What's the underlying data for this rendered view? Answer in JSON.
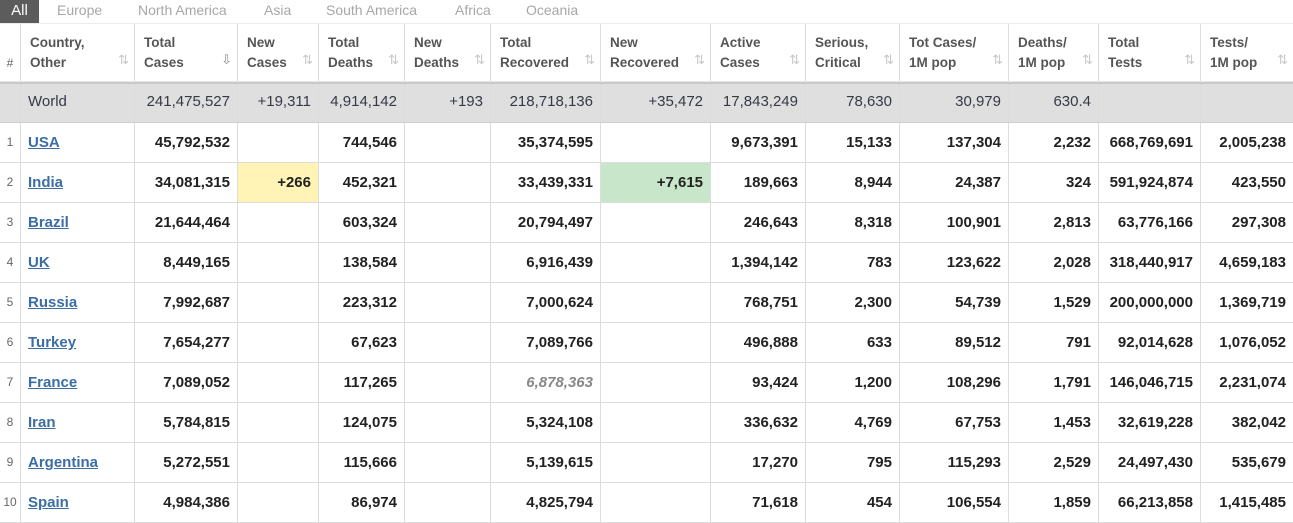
{
  "tabs": [
    "All",
    "Europe",
    "North America",
    "Asia",
    "South America",
    "Africa",
    "Oceania"
  ],
  "headers": {
    "idx": "#",
    "country": [
      "Country,",
      "Other"
    ],
    "tc": [
      "Total",
      "Cases"
    ],
    "nc": [
      "New",
      "Cases"
    ],
    "td": [
      "Total",
      "Deaths"
    ],
    "nd": [
      "New",
      "Deaths"
    ],
    "tr": [
      "Total",
      "Recovered"
    ],
    "nr": [
      "New",
      "Recovered"
    ],
    "ac": [
      "Active",
      "Cases"
    ],
    "sc": [
      "Serious,",
      "Critical"
    ],
    "tcm": [
      "Tot Cases/",
      "1M pop"
    ],
    "dm": [
      "Deaths/",
      "1M pop"
    ],
    "tt": [
      "Total",
      "Tests"
    ],
    "tm": [
      "Tests/",
      "1M pop"
    ]
  },
  "sort_icon": "⇅",
  "sort_icon_active": "⇩",
  "world": {
    "country": "World",
    "tc": "241,475,527",
    "nc": "+19,311",
    "td": "4,914,142",
    "nd": "+193",
    "tr": "218,718,136",
    "nr": "+35,472",
    "ac": "17,843,249",
    "sc": "78,630",
    "tcm": "30,979",
    "dm": "630.4",
    "tt": "",
    "tm": ""
  },
  "rows": [
    {
      "idx": "1",
      "country": "USA",
      "tc": "45,792,532",
      "nc": "",
      "td": "744,546",
      "nd": "",
      "tr": "35,374,595",
      "nr": "",
      "ac": "9,673,391",
      "sc": "15,133",
      "tcm": "137,304",
      "dm": "2,232",
      "tt": "668,769,691",
      "tm": "2,005,238"
    },
    {
      "idx": "2",
      "country": "India",
      "tc": "34,081,315",
      "nc": "+266",
      "td": "452,321",
      "nd": "",
      "tr": "33,439,331",
      "nr": "+7,615",
      "ac": "189,663",
      "sc": "8,944",
      "tcm": "24,387",
      "dm": "324",
      "tt": "591,924,874",
      "tm": "423,550"
    },
    {
      "idx": "3",
      "country": "Brazil",
      "tc": "21,644,464",
      "nc": "",
      "td": "603,324",
      "nd": "",
      "tr": "20,794,497",
      "nr": "",
      "ac": "246,643",
      "sc": "8,318",
      "tcm": "100,901",
      "dm": "2,813",
      "tt": "63,776,166",
      "tm": "297,308"
    },
    {
      "idx": "4",
      "country": "UK",
      "tc": "8,449,165",
      "nc": "",
      "td": "138,584",
      "nd": "",
      "tr": "6,916,439",
      "nr": "",
      "ac": "1,394,142",
      "sc": "783",
      "tcm": "123,622",
      "dm": "2,028",
      "tt": "318,440,917",
      "tm": "4,659,183"
    },
    {
      "idx": "5",
      "country": "Russia",
      "tc": "7,992,687",
      "nc": "",
      "td": "223,312",
      "nd": "",
      "tr": "7,000,624",
      "nr": "",
      "ac": "768,751",
      "sc": "2,300",
      "tcm": "54,739",
      "dm": "1,529",
      "tt": "200,000,000",
      "tm": "1,369,719"
    },
    {
      "idx": "6",
      "country": "Turkey",
      "tc": "7,654,277",
      "nc": "",
      "td": "67,623",
      "nd": "",
      "tr": "7,089,766",
      "nr": "",
      "ac": "496,888",
      "sc": "633",
      "tcm": "89,512",
      "dm": "791",
      "tt": "92,014,628",
      "tm": "1,076,052"
    },
    {
      "idx": "7",
      "country": "France",
      "tc": "7,089,052",
      "nc": "",
      "td": "117,265",
      "nd": "",
      "tr": "6,878,363",
      "nr": "",
      "ac": "93,424",
      "sc": "1,200",
      "tcm": "108,296",
      "dm": "1,791",
      "tt": "146,046,715",
      "tm": "2,231,074",
      "tr_unofficial": true
    },
    {
      "idx": "8",
      "country": "Iran",
      "tc": "5,784,815",
      "nc": "",
      "td": "124,075",
      "nd": "",
      "tr": "5,324,108",
      "nr": "",
      "ac": "336,632",
      "sc": "4,769",
      "tcm": "67,753",
      "dm": "1,453",
      "tt": "32,619,228",
      "tm": "382,042"
    },
    {
      "idx": "9",
      "country": "Argentina",
      "tc": "5,272,551",
      "nc": "",
      "td": "115,666",
      "nd": "",
      "tr": "5,139,615",
      "nr": "",
      "ac": "17,270",
      "sc": "795",
      "tcm": "115,293",
      "dm": "2,529",
      "tt": "24,497,430",
      "tm": "535,679"
    },
    {
      "idx": "10",
      "country": "Spain",
      "tc": "4,984,386",
      "nc": "",
      "td": "86,974",
      "nd": "",
      "tr": "4,825,794",
      "nr": "",
      "ac": "71,618",
      "sc": "454",
      "tcm": "106,554",
      "dm": "1,859",
      "tt": "66,213,858",
      "tm": "1,415,485"
    }
  ],
  "colors": {
    "new_cases_bg": "#fff3b5",
    "new_recovered_bg": "#c8e6c9",
    "link": "#3a6ea5",
    "tab_active_bg": "#5c5c5c"
  }
}
